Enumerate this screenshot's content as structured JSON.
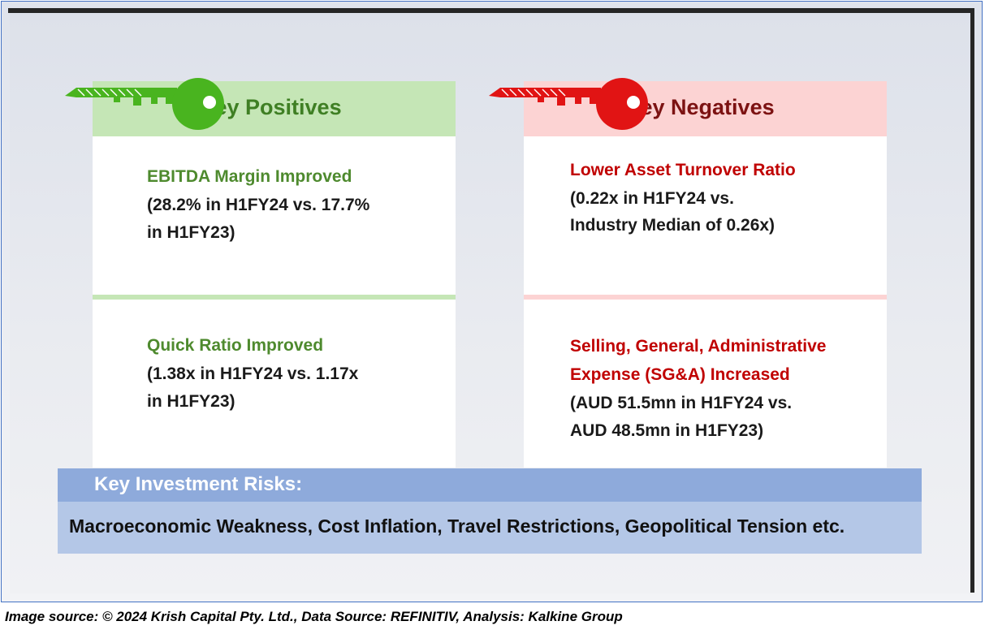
{
  "positives": {
    "heading": "Key Positives",
    "items": [
      {
        "title": "EBITDA Margin Improved",
        "lines": [
          "(28.2% in H1FY24 vs. 17.7%",
          "in H1FY23)"
        ]
      },
      {
        "title": "Quick Ratio Improved",
        "lines": [
          "(1.38x in H1FY24 vs. 1.17x",
          "in H1FY23)"
        ]
      }
    ]
  },
  "negatives": {
    "heading": "Key Negatives",
    "items": [
      {
        "title_lines": [
          "Lower Asset Turnover Ratio"
        ],
        "lines": [
          "(0.22x in H1FY24 vs.",
          "Industry Median of 0.26x)"
        ]
      },
      {
        "title_lines": [
          "Selling, General, Administrative",
          "Expense (SG&A) Increased"
        ],
        "lines": [
          "(AUD 51.5mn in H1FY24 vs.",
          "AUD 48.5mn in H1FY23)"
        ]
      }
    ]
  },
  "risks": {
    "heading": "Key Investment Risks:",
    "text": "Macroeconomic Weakness, Cost Inflation, Travel Restrictions, Geopolitical Tension etc."
  },
  "footer": "Image source: © 2024 Krish Capital Pty. Ltd., Data Source: REFINITIV, Analysis: Kalkine Group",
  "colors": {
    "positive_accent": "#4e8a2e",
    "positive_header_bg": "#c5e6b6",
    "key_green": "#49b41f",
    "negative_accent": "#c00000",
    "negative_header_bg": "#fcd3d3",
    "key_red": "#e11414",
    "risk_header_bg": "#8eaadb",
    "risk_body_bg": "#b4c7e7"
  },
  "icons": [
    "green-key-icon",
    "red-key-icon"
  ]
}
